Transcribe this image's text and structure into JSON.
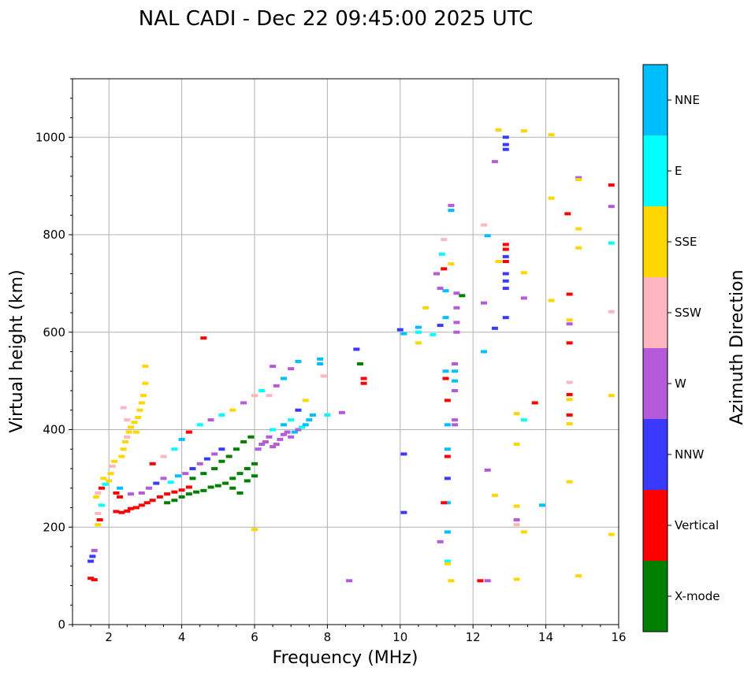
{
  "chart_data": {
    "type": "scatter",
    "title": "NAL CADI - Dec 22 09:45:00 2025 UTC",
    "xlabel": "Frequency (MHz)",
    "ylabel": "Virtual height (km)",
    "xlim": [
      1,
      16
    ],
    "ylim": [
      0,
      1120
    ],
    "xticks": [
      2,
      4,
      6,
      8,
      10,
      12,
      14,
      16
    ],
    "yticks": [
      0,
      200,
      400,
      600,
      800,
      1000
    ],
    "grid": true,
    "colorbar": {
      "title": "Azimuth Direction",
      "categories": [
        {
          "label": "X-mode",
          "color": "#008000"
        },
        {
          "label": "Vertical",
          "color": "#ff0000"
        },
        {
          "label": "NNW",
          "color": "#3a3aff"
        },
        {
          "label": "W",
          "color": "#b55ad8"
        },
        {
          "label": "SSW",
          "color": "#ffb6c1"
        },
        {
          "label": "SSE",
          "color": "#ffd700"
        },
        {
          "label": "E",
          "color": "#00ffff"
        },
        {
          "label": "NNE",
          "color": "#00bfff"
        }
      ]
    },
    "points": [
      [
        1.5,
        95,
        1
      ],
      [
        1.6,
        92,
        1
      ],
      [
        1.55,
        140,
        2
      ],
      [
        1.6,
        152,
        3
      ],
      [
        1.5,
        130,
        2
      ],
      [
        1.7,
        205,
        5
      ],
      [
        1.75,
        215,
        1
      ],
      [
        1.7,
        228,
        4
      ],
      [
        1.8,
        245,
        6
      ],
      [
        1.65,
        262,
        5
      ],
      [
        1.7,
        270,
        4
      ],
      [
        1.8,
        280,
        1
      ],
      [
        1.85,
        300,
        5
      ],
      [
        1.9,
        288,
        6
      ],
      [
        2.0,
        295,
        5
      ],
      [
        2.05,
        310,
        5
      ],
      [
        2.1,
        325,
        4
      ],
      [
        2.15,
        335,
        5
      ],
      [
        2.2,
        270,
        1
      ],
      [
        2.3,
        280,
        7
      ],
      [
        2.35,
        345,
        5
      ],
      [
        2.4,
        360,
        5
      ],
      [
        2.45,
        375,
        5
      ],
      [
        2.5,
        385,
        4
      ],
      [
        2.55,
        395,
        5
      ],
      [
        2.6,
        405,
        5
      ],
      [
        2.7,
        415,
        5
      ],
      [
        2.75,
        395,
        5
      ],
      [
        2.8,
        425,
        5
      ],
      [
        2.85,
        440,
        5
      ],
      [
        2.9,
        455,
        5
      ],
      [
        2.95,
        470,
        5
      ],
      [
        3.0,
        495,
        5
      ],
      [
        3.0,
        530,
        5
      ],
      [
        2.4,
        445,
        4
      ],
      [
        2.5,
        420,
        4
      ],
      [
        2.2,
        232,
        1
      ],
      [
        2.35,
        230,
        1
      ],
      [
        2.5,
        233,
        1
      ],
      [
        2.6,
        238,
        1
      ],
      [
        2.75,
        240,
        1
      ],
      [
        2.9,
        245,
        1
      ],
      [
        3.05,
        250,
        1
      ],
      [
        3.2,
        255,
        1
      ],
      [
        3.4,
        262,
        1
      ],
      [
        3.6,
        268,
        1
      ],
      [
        3.8,
        272,
        1
      ],
      [
        4.0,
        276,
        1
      ],
      [
        4.2,
        282,
        1
      ],
      [
        2.3,
        262,
        1
      ],
      [
        2.6,
        268,
        3
      ],
      [
        2.9,
        270,
        3
      ],
      [
        3.1,
        280,
        3
      ],
      [
        3.3,
        290,
        2
      ],
      [
        3.5,
        300,
        3
      ],
      [
        3.7,
        292,
        6
      ],
      [
        3.9,
        305,
        7
      ],
      [
        4.1,
        310,
        3
      ],
      [
        4.3,
        320,
        2
      ],
      [
        4.5,
        330,
        3
      ],
      [
        4.7,
        340,
        2
      ],
      [
        4.9,
        350,
        3
      ],
      [
        5.1,
        360,
        2
      ],
      [
        3.6,
        250,
        0
      ],
      [
        3.8,
        255,
        0
      ],
      [
        4.0,
        262,
        0
      ],
      [
        4.2,
        268,
        0
      ],
      [
        4.4,
        272,
        0
      ],
      [
        4.6,
        275,
        0
      ],
      [
        4.8,
        282,
        0
      ],
      [
        5.0,
        285,
        0
      ],
      [
        5.2,
        290,
        0
      ],
      [
        5.4,
        300,
        0
      ],
      [
        5.6,
        310,
        0
      ],
      [
        5.8,
        320,
        0
      ],
      [
        6.0,
        330,
        0
      ],
      [
        5.3,
        345,
        0
      ],
      [
        5.5,
        360,
        0
      ],
      [
        5.7,
        375,
        0
      ],
      [
        5.9,
        385,
        0
      ],
      [
        4.3,
        300,
        0
      ],
      [
        4.6,
        310,
        0
      ],
      [
        4.9,
        320,
        0
      ],
      [
        5.1,
        335,
        0
      ],
      [
        5.4,
        280,
        0
      ],
      [
        5.6,
        270,
        0
      ],
      [
        5.8,
        295,
        0
      ],
      [
        6.0,
        305,
        0
      ],
      [
        3.2,
        330,
        1
      ],
      [
        3.5,
        345,
        4
      ],
      [
        3.8,
        360,
        6
      ],
      [
        4.0,
        380,
        7
      ],
      [
        4.2,
        395,
        1
      ],
      [
        4.5,
        410,
        6
      ],
      [
        4.8,
        420,
        3
      ],
      [
        5.1,
        430,
        6
      ],
      [
        5.4,
        440,
        5
      ],
      [
        5.7,
        455,
        3
      ],
      [
        6.0,
        470,
        4
      ],
      [
        6.2,
        480,
        6
      ],
      [
        6.1,
        360,
        3
      ],
      [
        6.2,
        370,
        3
      ],
      [
        6.3,
        375,
        3
      ],
      [
        6.4,
        385,
        3
      ],
      [
        6.5,
        365,
        3
      ],
      [
        6.6,
        370,
        3
      ],
      [
        6.7,
        380,
        3
      ],
      [
        6.8,
        390,
        3
      ],
      [
        6.9,
        395,
        3
      ],
      [
        7.0,
        385,
        3
      ],
      [
        7.1,
        395,
        7
      ],
      [
        7.2,
        400,
        3
      ],
      [
        7.3,
        405,
        6
      ],
      [
        7.4,
        410,
        7
      ],
      [
        7.5,
        420,
        7
      ],
      [
        7.6,
        430,
        7
      ],
      [
        6.5,
        400,
        6
      ],
      [
        6.8,
        410,
        7
      ],
      [
        7.0,
        420,
        6
      ],
      [
        7.2,
        440,
        2
      ],
      [
        6.4,
        470,
        4
      ],
      [
        6.6,
        490,
        3
      ],
      [
        6.8,
        505,
        7
      ],
      [
        7.0,
        525,
        3
      ],
      [
        7.2,
        540,
        7
      ],
      [
        7.4,
        460,
        5
      ],
      [
        6.5,
        530,
        3
      ],
      [
        7.8,
        545,
        7
      ],
      [
        7.8,
        535,
        7
      ],
      [
        7.9,
        510,
        4
      ],
      [
        8.0,
        430,
        6
      ],
      [
        8.4,
        435,
        3
      ],
      [
        8.8,
        565,
        2
      ],
      [
        8.9,
        535,
        0
      ],
      [
        9.0,
        505,
        1
      ],
      [
        9.0,
        495,
        1
      ],
      [
        8.6,
        90,
        3
      ],
      [
        6.0,
        195,
        5
      ],
      [
        4.6,
        588,
        1
      ],
      [
        10.0,
        605,
        2
      ],
      [
        10.1,
        597,
        7
      ],
      [
        10.1,
        350,
        2
      ],
      [
        10.1,
        230,
        2
      ],
      [
        10.5,
        610,
        7
      ],
      [
        10.5,
        600,
        6
      ],
      [
        10.5,
        578,
        5
      ],
      [
        10.7,
        650,
        5
      ],
      [
        10.9,
        595,
        6
      ],
      [
        11.0,
        720,
        3
      ],
      [
        11.1,
        690,
        3
      ],
      [
        11.1,
        614,
        2
      ],
      [
        11.2,
        730,
        1
      ],
      [
        11.25,
        685,
        7
      ],
      [
        11.25,
        630,
        7
      ],
      [
        11.25,
        520,
        7
      ],
      [
        11.25,
        505,
        1
      ],
      [
        11.3,
        460,
        1
      ],
      [
        11.3,
        410,
        7
      ],
      [
        11.3,
        360,
        7
      ],
      [
        11.3,
        345,
        1
      ],
      [
        11.3,
        300,
        2
      ],
      [
        11.3,
        250,
        7
      ],
      [
        11.3,
        190,
        7
      ],
      [
        11.3,
        130,
        6
      ],
      [
        11.3,
        125,
        5
      ],
      [
        11.4,
        740,
        5
      ],
      [
        11.4,
        860,
        3
      ],
      [
        11.4,
        850,
        7
      ],
      [
        11.5,
        535,
        3
      ],
      [
        11.5,
        520,
        7
      ],
      [
        11.5,
        500,
        7
      ],
      [
        11.5,
        480,
        3
      ],
      [
        11.5,
        420,
        3
      ],
      [
        11.5,
        410,
        3
      ],
      [
        11.55,
        680,
        3
      ],
      [
        11.55,
        650,
        3
      ],
      [
        11.55,
        620,
        3
      ],
      [
        11.55,
        600,
        3
      ],
      [
        11.7,
        675,
        0
      ],
      [
        11.2,
        250,
        1
      ],
      [
        11.1,
        170,
        3
      ],
      [
        11.4,
        90,
        5
      ],
      [
        11.2,
        790,
        4
      ],
      [
        11.15,
        760,
        6
      ],
      [
        12.2,
        90,
        1
      ],
      [
        12.4,
        90,
        3
      ],
      [
        12.3,
        820,
        4
      ],
      [
        12.4,
        798,
        7
      ],
      [
        12.3,
        660,
        3
      ],
      [
        12.3,
        560,
        7
      ],
      [
        12.4,
        317,
        3
      ],
      [
        12.6,
        265,
        5
      ],
      [
        12.6,
        950,
        3
      ],
      [
        12.7,
        745,
        5
      ],
      [
        12.6,
        608,
        2
      ],
      [
        12.7,
        1015,
        5
      ],
      [
        12.9,
        1000,
        2
      ],
      [
        12.9,
        985,
        2
      ],
      [
        12.9,
        975,
        2
      ],
      [
        12.9,
        780,
        1
      ],
      [
        12.9,
        770,
        1
      ],
      [
        12.9,
        755,
        2
      ],
      [
        12.9,
        745,
        1
      ],
      [
        12.9,
        720,
        2
      ],
      [
        12.9,
        705,
        2
      ],
      [
        12.9,
        690,
        2
      ],
      [
        12.9,
        630,
        2
      ],
      [
        13.2,
        433,
        5
      ],
      [
        13.2,
        370,
        5
      ],
      [
        13.2,
        243,
        5
      ],
      [
        13.2,
        215,
        3
      ],
      [
        13.2,
        205,
        4
      ],
      [
        13.2,
        93,
        5
      ],
      [
        13.4,
        1013,
        5
      ],
      [
        13.4,
        722,
        5
      ],
      [
        13.4,
        670,
        3
      ],
      [
        13.4,
        420,
        6
      ],
      [
        13.4,
        190,
        5
      ],
      [
        13.7,
        455,
        1
      ],
      [
        13.9,
        245,
        7
      ],
      [
        14.15,
        1005,
        5
      ],
      [
        14.15,
        875,
        5
      ],
      [
        14.15,
        665,
        5
      ],
      [
        14.6,
        843,
        1
      ],
      [
        14.65,
        678,
        1
      ],
      [
        14.65,
        625,
        5
      ],
      [
        14.65,
        617,
        3
      ],
      [
        14.65,
        578,
        1
      ],
      [
        14.65,
        497,
        4
      ],
      [
        14.65,
        472,
        1
      ],
      [
        14.65,
        462,
        5
      ],
      [
        14.65,
        430,
        1
      ],
      [
        14.65,
        412,
        5
      ],
      [
        14.65,
        293,
        5
      ],
      [
        14.9,
        917,
        3
      ],
      [
        14.9,
        913,
        5
      ],
      [
        14.9,
        812,
        5
      ],
      [
        14.9,
        773,
        5
      ],
      [
        14.9,
        100,
        5
      ],
      [
        15.8,
        902,
        1
      ],
      [
        15.8,
        858,
        3
      ],
      [
        15.8,
        783,
        6
      ],
      [
        15.8,
        642,
        4
      ],
      [
        15.8,
        470,
        5
      ],
      [
        15.8,
        185,
        5
      ]
    ]
  }
}
